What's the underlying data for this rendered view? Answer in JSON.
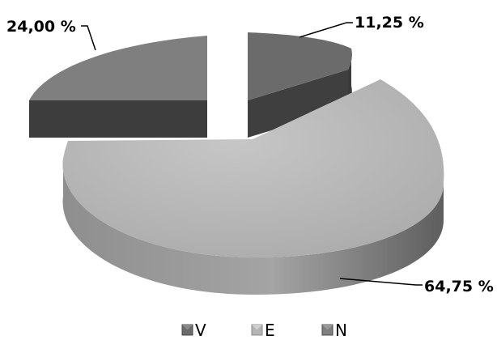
{
  "chart_data": {
    "type": "pie",
    "style": "3d-exploded",
    "categories": [
      "V",
      "E",
      "N"
    ],
    "values": [
      11.25,
      64.75,
      24.0
    ],
    "data_labels": [
      "11,25 %",
      "64,75 %",
      "24,00 %"
    ],
    "colors": {
      "V": {
        "top": "#6b6b6b",
        "side": "#3b3b3b"
      },
      "E": {
        "top": "#b5b5b5",
        "side": "#8a8a8a"
      },
      "N": {
        "top": "#7f7f7f",
        "side": "#3f3f3f"
      }
    },
    "legend": {
      "position": "bottom",
      "entries": [
        "V",
        "E",
        "N"
      ]
    }
  }
}
